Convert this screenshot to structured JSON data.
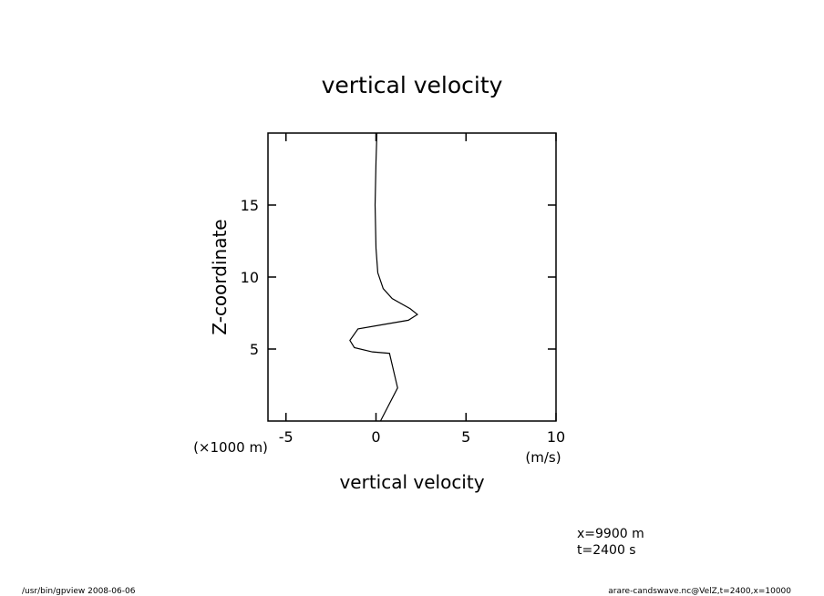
{
  "chart_data": {
    "type": "line",
    "title": "vertical velocity",
    "x_label": "vertical velocity",
    "x_units": "(m/s)",
    "y_label": "Z-coordinate",
    "y_units": "(×1000 m)",
    "values": [
      0.25,
      1.2,
      0.9,
      0.75,
      -0.2,
      -1.2,
      -1.45,
      -1.0,
      0.4,
      1.8,
      2.3,
      1.9,
      0.9,
      0.4,
      0.1,
      0.0,
      -0.05,
      0.0,
      0.05
    ],
    "z": [
      0,
      2.3,
      3.9,
      4.7,
      4.8,
      5.1,
      5.6,
      6.4,
      6.7,
      7.0,
      7.4,
      7.8,
      8.5,
      9.2,
      10.3,
      12,
      15,
      18,
      20
    ],
    "color": "#000000",
    "xlim": [
      -6,
      10
    ],
    "xticks": [
      -5,
      0,
      5,
      10
    ],
    "ylim": [
      0,
      20
    ],
    "yticks": [
      5,
      10,
      15
    ],
    "annotations": [
      "x=9900 m",
      "t=2400 s"
    ],
    "footer_left": "/usr/bin/gpview  2008-06-06",
    "footer_right": "arare-candswave.nc@VelZ,t=2400,x=10000"
  }
}
